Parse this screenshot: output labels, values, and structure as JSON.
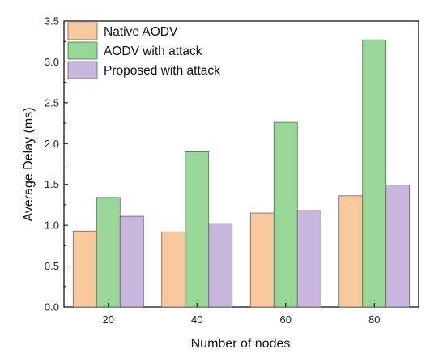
{
  "chart_data": {
    "type": "bar",
    "categories": [
      "20",
      "40",
      "60",
      "80"
    ],
    "series": [
      {
        "name": "Native AODV",
        "values": [
          0.93,
          0.92,
          1.15,
          1.36
        ],
        "color": "#f9c99e"
      },
      {
        "name": "AODV with attack",
        "values": [
          1.34,
          1.9,
          2.26,
          3.27
        ],
        "color": "#98d797"
      },
      {
        "name": "Proposed with attack",
        "values": [
          1.11,
          1.02,
          1.18,
          1.49
        ],
        "color": "#c8b6df"
      }
    ],
    "title": "",
    "xlabel": "Number of nodes",
    "ylabel": "Average Delay (ms)",
    "ylim": [
      0,
      3.5
    ],
    "yticks": [
      "0.0",
      "0.5",
      "1.0",
      "1.5",
      "2.0",
      "2.5",
      "3.0",
      "3.5"
    ],
    "grid": false,
    "legend_position": "top-left"
  }
}
